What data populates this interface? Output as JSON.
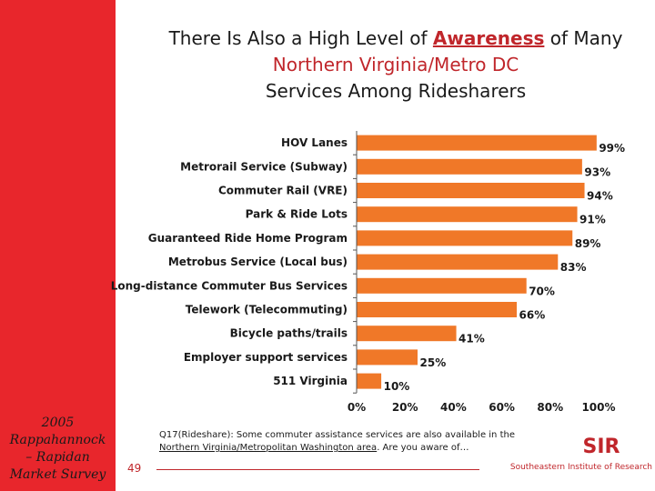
{
  "sidebar": {
    "line1": "2005",
    "line2": "Rappahannock",
    "line3": "– Rapidan",
    "line4": "Market Survey"
  },
  "title": {
    "part1": "There Is Also a High Level of ",
    "highlight1": "Awareness",
    "part2": " of Many ",
    "highlight2": "Northern Virginia/Metro DC",
    "part3": " Services Among Ridesharers"
  },
  "chart_data": {
    "type": "bar",
    "orientation": "horizontal",
    "categories": [
      "HOV Lanes",
      "Metrorail Service (Subway)",
      "Commuter Rail (VRE)",
      "Park & Ride Lots",
      "Guaranteed Ride Home Program",
      "Metrobus Service (Local bus)",
      "Long-distance Commuter Bus Services",
      "Telework (Telecommuting)",
      "Bicycle paths/trails",
      "Employer support services",
      "511 Virginia"
    ],
    "values": [
      99,
      93,
      94,
      91,
      89,
      83,
      70,
      66,
      41,
      25,
      10
    ],
    "value_labels": [
      "99%",
      "93%",
      "94%",
      "91%",
      "89%",
      "83%",
      "70%",
      "66%",
      "41%",
      "25%",
      "10%"
    ],
    "xticks": [
      "0%",
      "20%",
      "40%",
      "60%",
      "80%",
      "100%"
    ],
    "xlim": [
      0,
      100
    ],
    "bar_color": "#f07828"
  },
  "note": {
    "line1": "Q17(Rideshare): Some commuter assistance services are also available in the",
    "line2_underlined": "Northern Virginia/Metropolitan Washington area",
    "line2_rest": ". Are you aware of…"
  },
  "footer": {
    "page": "49",
    "org": "Southeastern Institute of Research",
    "logo_text": "SIR"
  }
}
